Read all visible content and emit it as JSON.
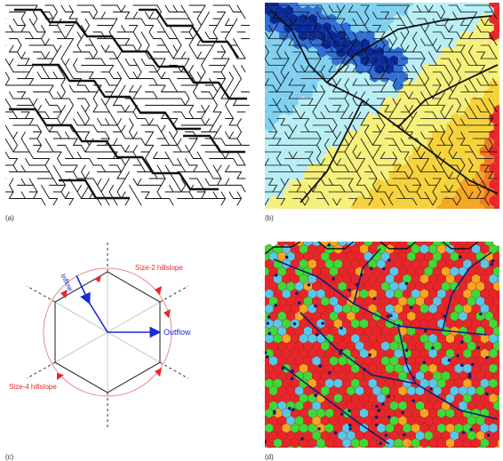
{
  "panels": {
    "a": {
      "label": "(a)"
    },
    "b": {
      "label": "(b)"
    },
    "c": {
      "label": "(c)"
    },
    "d": {
      "label": "(d)"
    }
  },
  "diagram_c": {
    "inflow": "Inflow",
    "outflow": "Outflow",
    "size2": "Size-2 hillslope",
    "size4": "Size-4 hillslope"
  },
  "colors": {
    "river": "#111111",
    "arrow_blue": "#1a2bd6",
    "hill_red": "#e8262a",
    "hill_green": "#3fd93a",
    "cyan": "#58c8e8",
    "orange": "#f5a623",
    "navy": "#0a1f7a"
  }
}
